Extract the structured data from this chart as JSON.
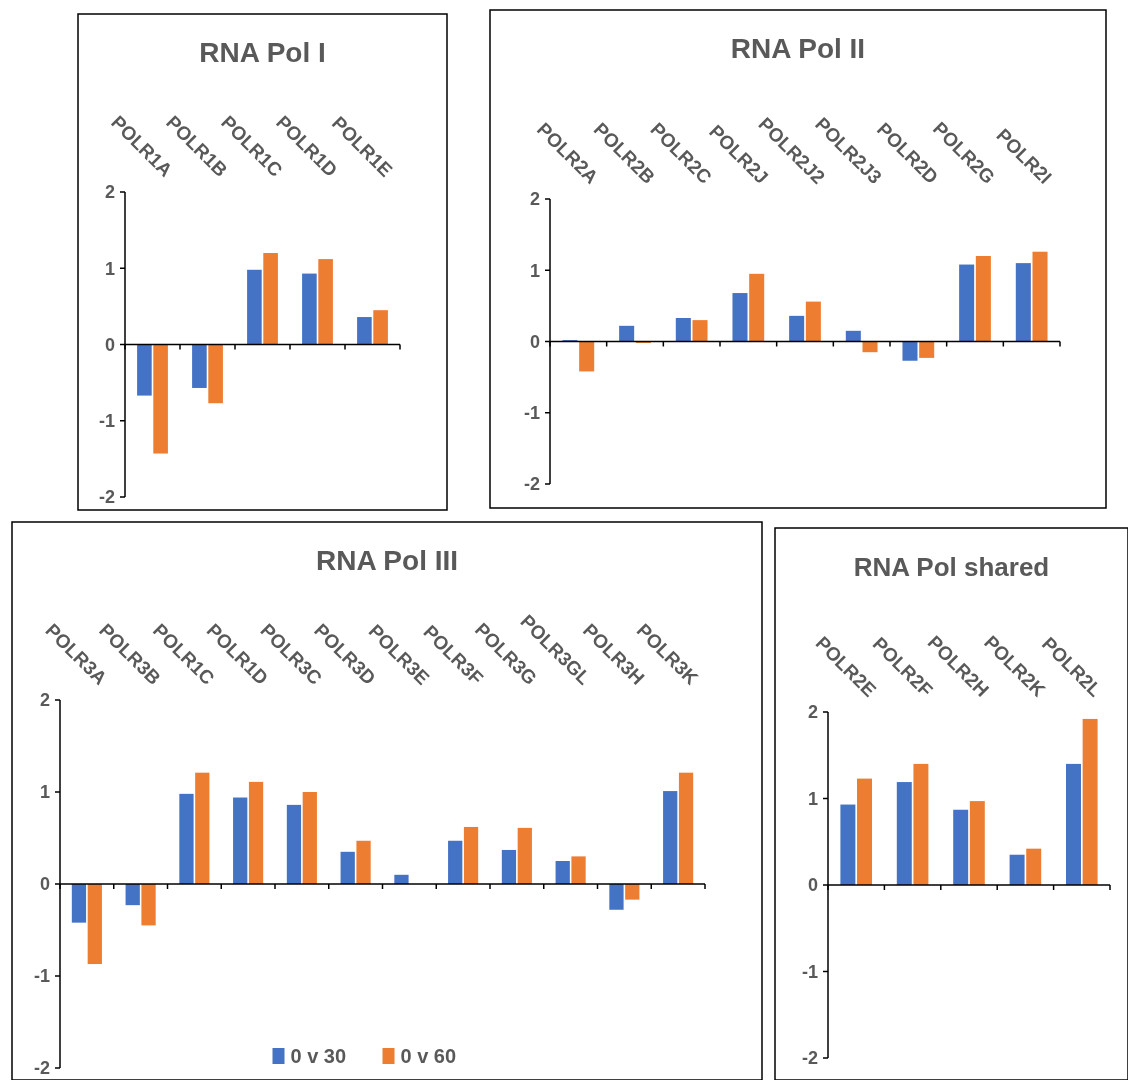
{
  "chart_data": [
    {
      "type": "bar",
      "title": "RNA Pol I",
      "categories": [
        "POLR1A",
        "POLR1B",
        "POLR1C",
        "POLR1D",
        "POLR1E"
      ],
      "series": [
        {
          "color": "#4472c4",
          "values": [
            -0.67,
            -0.57,
            0.98,
            0.93,
            0.36
          ]
        },
        {
          "color": "#ed7d31",
          "values": [
            -1.43,
            -0.77,
            1.2,
            1.12,
            0.45
          ]
        }
      ],
      "ylim": [
        -2,
        2
      ],
      "yticks": [
        -2,
        -1,
        0,
        1,
        2
      ]
    },
    {
      "type": "bar",
      "title": "RNA Pol II",
      "categories": [
        "POLR2A",
        "POLR2B",
        "POLR2C",
        "POLR2J",
        "POLR2J2",
        "POLR2J3",
        "POLR2D",
        "POLR2G",
        "POLR2I"
      ],
      "series": [
        {
          "color": "#4472c4",
          "values": [
            0.02,
            0.22,
            0.33,
            0.68,
            0.36,
            0.15,
            -0.27,
            1.08,
            1.1
          ]
        },
        {
          "color": "#ed7d31",
          "values": [
            -0.42,
            -0.02,
            0.3,
            0.95,
            0.56,
            -0.15,
            -0.23,
            1.2,
            1.26
          ]
        }
      ],
      "ylim": [
        -2,
        2
      ],
      "yticks": [
        -2,
        -1,
        0,
        1,
        2
      ]
    },
    {
      "type": "bar",
      "title": "RNA Pol III",
      "categories": [
        "POLR3A",
        "POLR3B",
        "POLR1C",
        "POLR1D",
        "POLR3C",
        "POLR3D",
        "POLR3E",
        "POLR3F",
        "POLR3G",
        "POLR3GL",
        "POLR3H",
        "POLR3K"
      ],
      "series": [
        {
          "name": "0 v 30",
          "color": "#4472c4",
          "values": [
            -0.42,
            -0.23,
            0.98,
            0.94,
            0.86,
            0.35,
            0.1,
            0.47,
            0.37,
            0.25,
            -0.28,
            1.01
          ]
        },
        {
          "name": "0 v 60",
          "color": "#ed7d31",
          "values": [
            -0.87,
            -0.45,
            1.21,
            1.11,
            1.0,
            0.47,
            0,
            0.62,
            0.61,
            0.3,
            -0.17,
            1.21
          ]
        }
      ],
      "ylim": [
        -2,
        2
      ],
      "yticks": [
        -2,
        -1,
        0,
        1,
        2
      ],
      "legend": "bottom"
    },
    {
      "type": "bar",
      "title": "RNA Pol shared",
      "categories": [
        "POLR2E",
        "POLR2F",
        "POLR2H",
        "POLR2K",
        "POLR2L"
      ],
      "series": [
        {
          "color": "#4472c4",
          "values": [
            0.93,
            1.19,
            0.87,
            0.35,
            1.4
          ]
        },
        {
          "color": "#ed7d31",
          "values": [
            1.23,
            1.4,
            0.97,
            0.42,
            1.92
          ]
        }
      ],
      "ylim": [
        -2,
        2
      ],
      "yticks": [
        -2,
        -1,
        0,
        1,
        2
      ]
    }
  ]
}
